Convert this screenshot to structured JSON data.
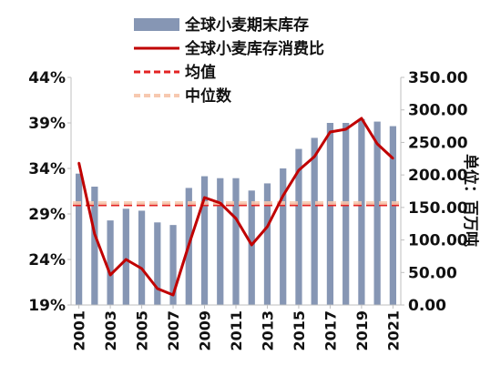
{
  "chart_data": {
    "type": "bar",
    "categories": [
      "2001",
      "2002",
      "2003",
      "2004",
      "2005",
      "2006",
      "2007",
      "2008",
      "2009",
      "2010",
      "2011",
      "2012",
      "2013",
      "2014",
      "2015",
      "2016",
      "2017",
      "2018",
      "2019",
      "2020",
      "2021"
    ],
    "x_tick_labels": [
      "2001",
      "2003",
      "2005",
      "2007",
      "2009",
      "2011",
      "2013",
      "2015",
      "2017",
      "2019",
      "2021"
    ],
    "series": [
      {
        "name": "全球小麦期末库存",
        "type": "bar",
        "axis": "right",
        "color": "#8696b4",
        "values": [
          202,
          182,
          130,
          148,
          145,
          127,
          123,
          180,
          198,
          195,
          195,
          176,
          187,
          210,
          240,
          257,
          280,
          280,
          286,
          282,
          275
        ]
      },
      {
        "name": "全球小麦库存消费比",
        "type": "line",
        "axis": "left",
        "color": "#c00000",
        "values": [
          34.6,
          26.8,
          22.3,
          24.0,
          23.0,
          20.8,
          20.1,
          25.6,
          30.8,
          30.2,
          28.5,
          25.6,
          27.6,
          31.0,
          33.8,
          35.3,
          38.0,
          38.3,
          39.5,
          36.7,
          35.1
        ]
      },
      {
        "name": "均值",
        "type": "hline",
        "axis": "left",
        "color": "#e32222",
        "dash": "dashed",
        "value": 30.0
      },
      {
        "name": "中位数",
        "type": "hline",
        "axis": "left",
        "color": "#f7c9b0",
        "dash": "dashed",
        "value": 30.2
      }
    ],
    "y_left": {
      "ticks": [
        "19%",
        "24%",
        "29%",
        "34%",
        "39%",
        "44%"
      ],
      "range": [
        19,
        44
      ]
    },
    "y_right": {
      "label": "单位：百万吨",
      "ticks": [
        "0.00",
        "50.00",
        "100.00",
        "150.00",
        "200.00",
        "250.00",
        "300.00",
        "350.00"
      ],
      "range": [
        0,
        350
      ]
    },
    "legend_position": "top",
    "grid": false
  }
}
